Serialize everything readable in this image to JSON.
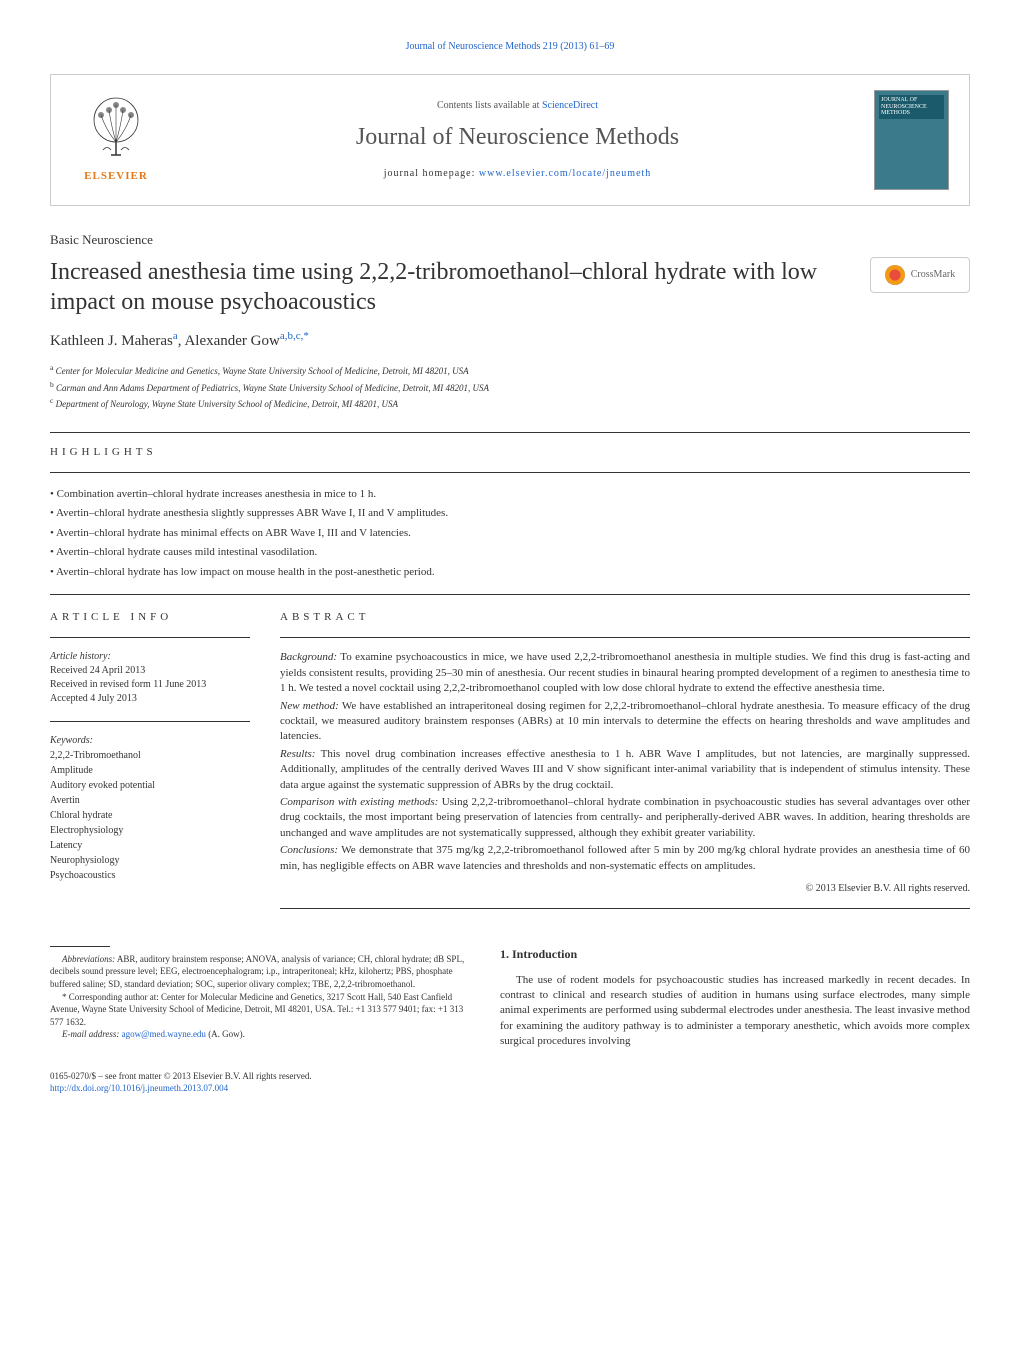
{
  "top_link": {
    "text": "Journal of Neuroscience Methods 219 (2013) 61–69",
    "href": "#"
  },
  "header": {
    "contents_prefix": "Contents lists available at ",
    "contents_link": "ScienceDirect",
    "journal_name": "Journal of Neuroscience Methods",
    "homepage_prefix": "journal homepage: ",
    "homepage_link": "www.elsevier.com/locate/jneumeth",
    "publisher_name": "ELSEVIER",
    "cover_title": "JOURNAL OF NEUROSCIENCE METHODS"
  },
  "section_label": "Basic Neuroscience",
  "article_title": "Increased anesthesia time using 2,2,2-tribromoethanol–chloral hydrate with low impact on mouse psychoacoustics",
  "crossmark_label": "CrossMark",
  "authors_html": "Kathleen J. Maheras<sup class=\"affil-sup\">a</sup>, Alexander Gow<sup class=\"affil-sup\">a,b,c,*</sup>",
  "affiliations": [
    {
      "sup": "a",
      "text": "Center for Molecular Medicine and Genetics, Wayne State University School of Medicine, Detroit, MI 48201, USA"
    },
    {
      "sup": "b",
      "text": "Carman and Ann Adams Department of Pediatrics, Wayne State University School of Medicine, Detroit, MI 48201, USA"
    },
    {
      "sup": "c",
      "text": "Department of Neurology, Wayne State University School of Medicine, Detroit, MI 48201, USA"
    }
  ],
  "highlights_heading": "HIGHLIGHTS",
  "highlights": [
    "Combination avertin–chloral hydrate increases anesthesia in mice to 1 h.",
    "Avertin–chloral hydrate anesthesia slightly suppresses ABR Wave I, II and V amplitudes.",
    "Avertin–chloral hydrate has minimal effects on ABR Wave I, III and V latencies.",
    "Avertin–chloral hydrate causes mild intestinal vasodilation.",
    "Avertin–chloral hydrate has low impact on mouse health in the post-anesthetic period."
  ],
  "article_info_heading": "ARTICLE INFO",
  "history_label": "Article history:",
  "history": [
    "Received 24 April 2013",
    "Received in revised form 11 June 2013",
    "Accepted 4 July 2013"
  ],
  "keywords_label": "Keywords:",
  "keywords": [
    "2,2,2-Tribromoethanol",
    "Amplitude",
    "Auditory evoked potential",
    "Avertin",
    "Chloral hydrate",
    "Electrophysiology",
    "Latency",
    "Neurophysiology",
    "Psychoacoustics"
  ],
  "abstract_heading": "ABSTRACT",
  "abstract": {
    "background": {
      "label": "Background:",
      "text": " To examine psychoacoustics in mice, we have used 2,2,2-tribromoethanol anesthesia in multiple studies. We find this drug is fast-acting and yields consistent results, providing 25–30 min of anesthesia. Our recent studies in binaural hearing prompted development of a regimen to anesthesia time to 1 h. We tested a novel cocktail using 2,2,2-tribromoethanol coupled with low dose chloral hydrate to extend the effective anesthesia time."
    },
    "new_method": {
      "label": "New method:",
      "text": " We have established an intraperitoneal dosing regimen for 2,2,2-tribromoethanol–chloral hydrate anesthesia. To measure efficacy of the drug cocktail, we measured auditory brainstem responses (ABRs) at 10 min intervals to determine the effects on hearing thresholds and wave amplitudes and latencies."
    },
    "results": {
      "label": "Results:",
      "text": " This novel drug combination increases effective anesthesia to 1 h. ABR Wave I amplitudes, but not latencies, are marginally suppressed. Additionally, amplitudes of the centrally derived Waves III and V show significant inter-animal variability that is independent of stimulus intensity. These data argue against the systematic suppression of ABRs by the drug cocktail."
    },
    "comparison": {
      "label": "Comparison with existing methods:",
      "text": " Using 2,2,2-tribromoethanol–chloral hydrate combination in psychoacoustic studies has several advantages over other drug cocktails, the most important being preservation of latencies from centrally- and peripherally-derived ABR waves. In addition, hearing thresholds are unchanged and wave amplitudes are not systematically suppressed, although they exhibit greater variability."
    },
    "conclusions": {
      "label": "Conclusions:",
      "text": " We demonstrate that 375 mg/kg 2,2,2-tribromoethanol followed after 5 min by 200 mg/kg chloral hydrate provides an anesthesia time of 60 min, has negligible effects on ABR wave latencies and thresholds and non-systematic effects on amplitudes."
    }
  },
  "copyright": "© 2013 Elsevier B.V. All rights reserved.",
  "intro_heading": "1.  Introduction",
  "intro_text": "The use of rodent models for psychoacoustic studies has increased markedly in recent decades. In contrast to clinical and research studies of audition in humans using surface electrodes, many simple animal experiments are performed using subdermal electrodes under anesthesia. The least invasive method for examining the auditory pathway is to administer a temporary anesthetic, which avoids more complex surgical procedures involving",
  "abbreviations": {
    "label": "Abbreviations:",
    "text": " ABR, auditory brainstem response; ANOVA, analysis of variance; CH, chloral hydrate; dB SPL, decibels sound pressure level; EEG, electroencephalogram; i.p., intraperitoneal; kHz, kilohertz; PBS, phosphate buffered saline; SD, standard deviation; SOC, superior olivary complex; TBE, 2,2,2-tribromoethanol."
  },
  "corresponding": {
    "marker": "*",
    "text": " Corresponding author at: Center for Molecular Medicine and Genetics, 3217 Scott Hall, 540 East Canfield Avenue, Wayne State University School of Medicine, Detroit, MI 48201, USA. Tel.: +1 313 577 9401; fax: +1 313 577 1632."
  },
  "email": {
    "label": "E-mail address: ",
    "address": "agow@med.wayne.edu",
    "suffix": " (A. Gow)."
  },
  "bottom_meta": {
    "line1": "0165-0270/$ – see front matter © 2013 Elsevier B.V. All rights reserved.",
    "doi": "http://dx.doi.org/10.1016/j.jneumeth.2013.07.004"
  },
  "colors": {
    "link": "#2266cc",
    "elsevier_orange": "#e67817",
    "text": "#333333",
    "border": "#cccccc",
    "rule": "#333333",
    "cover_bg": "#3a7a8a",
    "cover_title_bg": "#1a5a6a"
  }
}
